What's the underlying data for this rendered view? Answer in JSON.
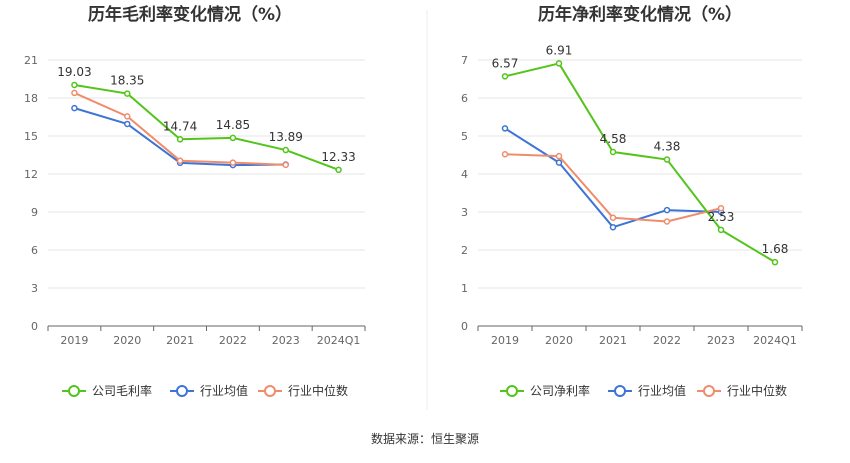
{
  "chart_data": [
    {
      "type": "line",
      "title": "历年毛利率变化情况（%）",
      "categories": [
        "2019",
        "2020",
        "2021",
        "2022",
        "2023",
        "2024Q1"
      ],
      "y_ticks": [
        "0",
        "3",
        "6",
        "9",
        "12",
        "15",
        "18",
        "21"
      ],
      "ylim": [
        0,
        21
      ],
      "grid": true,
      "legend_position": "bottom",
      "series": [
        {
          "name": "公司毛利率",
          "color": "#52c41a",
          "values": [
            19.03,
            18.35,
            14.74,
            14.85,
            13.89,
            12.33
          ],
          "labels": [
            "19.03",
            "18.35",
            "14.74",
            "14.85",
            "13.89",
            "12.33"
          ]
        },
        {
          "name": "行业均值",
          "color": "#3d74d6",
          "values": [
            17.2,
            15.95,
            12.88,
            12.7,
            12.75,
            null
          ]
        },
        {
          "name": "行业中位数",
          "color": "#f08c6c",
          "values": [
            18.4,
            16.55,
            13.05,
            12.9,
            12.72,
            null
          ]
        }
      ]
    },
    {
      "type": "line",
      "title": "历年净利率变化情况（%）",
      "categories": [
        "2019",
        "2020",
        "2021",
        "2022",
        "2023",
        "2024Q1"
      ],
      "y_ticks": [
        "0",
        "1",
        "2",
        "3",
        "4",
        "5",
        "6",
        "7"
      ],
      "ylim": [
        0,
        7
      ],
      "grid": true,
      "legend_position": "bottom",
      "series": [
        {
          "name": "公司净利率",
          "color": "#52c41a",
          "values": [
            6.57,
            6.91,
            4.58,
            4.38,
            2.53,
            1.68
          ],
          "labels": [
            "6.57",
            "6.91",
            "4.58",
            "4.38",
            "2.53",
            "1.68"
          ]
        },
        {
          "name": "行业均值",
          "color": "#3d74d6",
          "values": [
            5.2,
            4.3,
            2.6,
            3.05,
            3.0,
            null
          ]
        },
        {
          "name": "行业中位数",
          "color": "#f08c6c",
          "values": [
            4.52,
            4.47,
            2.85,
            2.75,
            3.1,
            null
          ]
        }
      ]
    }
  ],
  "source_text": "数据来源：恒生聚源"
}
